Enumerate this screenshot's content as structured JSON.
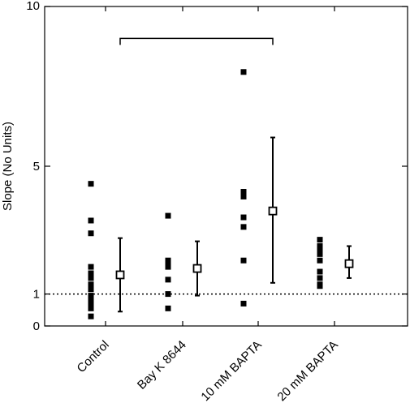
{
  "chart_data": {
    "type": "scatter",
    "title": "",
    "xlabel": "",
    "ylabel": "Slope (No Units)",
    "ylim": [
      0,
      10
    ],
    "yticks": [
      0,
      1,
      5,
      10
    ],
    "yticks_labels": [
      "0",
      "1",
      "5",
      "10"
    ],
    "grid": false,
    "categories": [
      "Control",
      "Bay K 8644",
      "10 mM BAPTA",
      "20 mM BAPTA"
    ],
    "reference_line": {
      "y": 1,
      "style": "dotted"
    },
    "bracket": {
      "from_category": 0,
      "to_category": 2,
      "y": 9.0
    },
    "groups": [
      {
        "category": "Control",
        "points": [
          4.45,
          3.3,
          2.9,
          1.85,
          1.65,
          1.5,
          1.3,
          1.15,
          0.95,
          0.8,
          0.65,
          0.55,
          0.3
        ],
        "mean": 1.6,
        "error": [
          0.45,
          2.75
        ]
      },
      {
        "category": "Bay K 8644",
        "points": [
          3.45,
          2.05,
          2.0,
          1.85,
          1.45,
          1.0,
          0.55
        ],
        "mean": 1.8,
        "error": [
          0.95,
          2.65
        ]
      },
      {
        "category": "10 mM BAPTA",
        "points": [
          7.95,
          4.2,
          4.05,
          3.4,
          3.1,
          2.05,
          0.7
        ],
        "mean": 3.6,
        "error": [
          1.35,
          5.9
        ]
      },
      {
        "category": "20 mM BAPTA",
        "points": [
          2.7,
          2.5,
          2.35,
          2.25,
          2.05,
          1.7,
          1.5,
          1.3,
          1.25
        ],
        "mean": 1.95,
        "error": [
          1.5,
          2.5
        ]
      }
    ]
  }
}
